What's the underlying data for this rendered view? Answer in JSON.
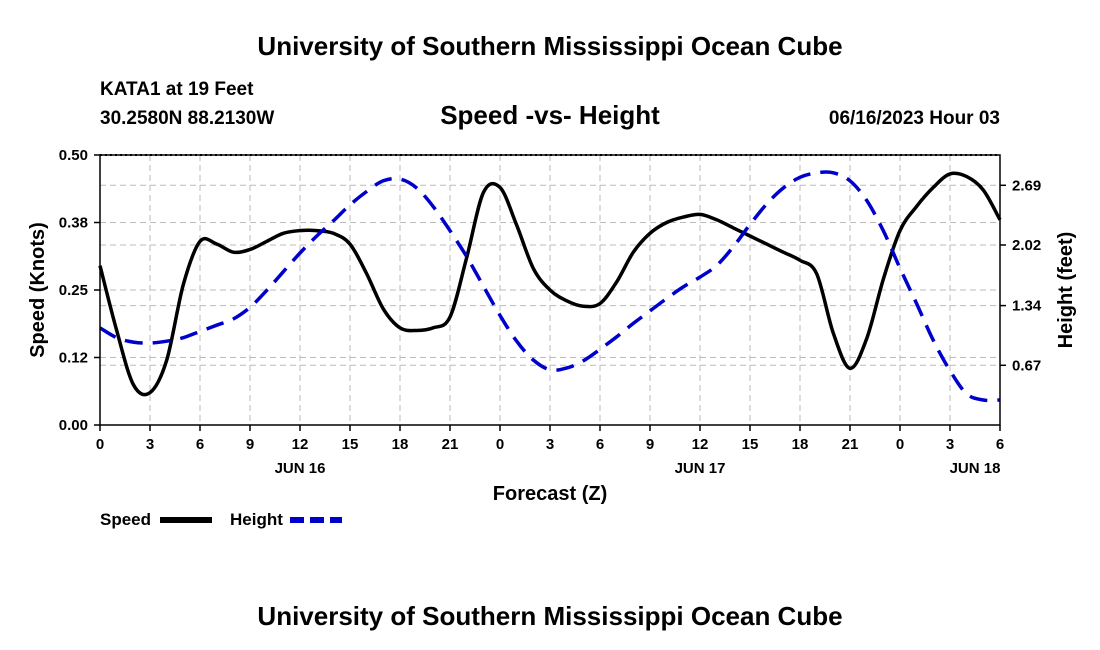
{
  "header": {
    "title": "University of Southern Mississippi Ocean Cube",
    "station": "KATA1 at 19 Feet",
    "location": "30.2580N  88.2130W",
    "date": "06/16/2023 Hour 03",
    "footer_title": "University of Southern Mississippi Ocean Cube"
  },
  "colors": {
    "speed": "#000000",
    "height": "#0000cc",
    "grid": "#bbbbbb"
  },
  "chart_data": {
    "type": "line",
    "title": "Speed -vs- Height",
    "xlabel": "Forecast (Z)",
    "ylabel": "Speed (Knots)",
    "ylabel_right": "Height (feet)",
    "x_range": [
      0,
      54
    ],
    "x_ticks": [
      {
        "x": 0,
        "label": "0"
      },
      {
        "x": 3,
        "label": "3"
      },
      {
        "x": 6,
        "label": "6"
      },
      {
        "x": 9,
        "label": "9"
      },
      {
        "x": 12,
        "label": "12"
      },
      {
        "x": 15,
        "label": "15"
      },
      {
        "x": 18,
        "label": "18"
      },
      {
        "x": 21,
        "label": "21"
      },
      {
        "x": 24,
        "label": "0"
      },
      {
        "x": 27,
        "label": "3"
      },
      {
        "x": 30,
        "label": "6"
      },
      {
        "x": 33,
        "label": "9"
      },
      {
        "x": 36,
        "label": "12"
      },
      {
        "x": 39,
        "label": "15"
      },
      {
        "x": 42,
        "label": "18"
      },
      {
        "x": 45,
        "label": "21"
      },
      {
        "x": 48,
        "label": "0"
      },
      {
        "x": 51,
        "label": "3"
      },
      {
        "x": 54,
        "label": "6"
      }
    ],
    "day_labels": [
      {
        "x": 12,
        "label": "JUN 16"
      },
      {
        "x": 36,
        "label": "JUN 17"
      },
      {
        "x": 52.5,
        "label": "JUN 18"
      }
    ],
    "y_left": {
      "range": [
        0,
        0.5
      ],
      "ticks": [
        {
          "v": 0.0,
          "label": "0.00"
        },
        {
          "v": 0.125,
          "label": "0.12"
        },
        {
          "v": 0.25,
          "label": "0.25"
        },
        {
          "v": 0.375,
          "label": "0.38"
        },
        {
          "v": 0.5,
          "label": "0.50"
        }
      ]
    },
    "y_right": {
      "range": [
        0,
        3.03
      ],
      "ticks": [
        {
          "v": 0.67,
          "label": "0.67"
        },
        {
          "v": 1.34,
          "label": "1.34"
        },
        {
          "v": 2.02,
          "label": "2.02"
        },
        {
          "v": 2.69,
          "label": "2.69"
        }
      ]
    },
    "series": [
      {
        "name": "Speed",
        "axis": "left",
        "style": "solid",
        "x": [
          0,
          1,
          2,
          3,
          4,
          5,
          6,
          7,
          8,
          9,
          10,
          11,
          12,
          13,
          14,
          15,
          16,
          17,
          18,
          19,
          20,
          21,
          22,
          23,
          24,
          25,
          26,
          27,
          28,
          29,
          30,
          31,
          32,
          33,
          34,
          35,
          36,
          37,
          38,
          39,
          40,
          41,
          42,
          43,
          44,
          45,
          46,
          47,
          48,
          49,
          50,
          51,
          52,
          53,
          54
        ],
        "values": [
          0.295,
          0.175,
          0.075,
          0.06,
          0.12,
          0.26,
          0.34,
          0.335,
          0.32,
          0.325,
          0.34,
          0.355,
          0.36,
          0.36,
          0.355,
          0.335,
          0.28,
          0.215,
          0.18,
          0.175,
          0.18,
          0.2,
          0.31,
          0.43,
          0.44,
          0.37,
          0.29,
          0.25,
          0.23,
          0.22,
          0.225,
          0.265,
          0.32,
          0.355,
          0.375,
          0.385,
          0.39,
          0.38,
          0.365,
          0.35,
          0.335,
          0.32,
          0.305,
          0.28,
          0.17,
          0.105,
          0.16,
          0.27,
          0.36,
          0.405,
          0.44,
          0.465,
          0.46,
          0.435,
          0.38
        ]
      },
      {
        "name": "Height",
        "axis": "right",
        "style": "dashed",
        "x": [
          0,
          1,
          2,
          3,
          4,
          5,
          6,
          7,
          8,
          9,
          10,
          11,
          12,
          13,
          14,
          15,
          16,
          17,
          18,
          19,
          20,
          21,
          22,
          23,
          24,
          25,
          26,
          27,
          28,
          29,
          30,
          31,
          32,
          33,
          34,
          35,
          36,
          37,
          38,
          39,
          40,
          41,
          42,
          43,
          44,
          45,
          46,
          47,
          48,
          49,
          50,
          51,
          52,
          53,
          54
        ],
        "values": [
          1.09,
          0.98,
          0.93,
          0.92,
          0.94,
          0.98,
          1.05,
          1.12,
          1.19,
          1.32,
          1.51,
          1.72,
          1.93,
          2.12,
          2.29,
          2.47,
          2.62,
          2.74,
          2.76,
          2.66,
          2.45,
          2.18,
          1.89,
          1.56,
          1.23,
          0.94,
          0.73,
          0.62,
          0.64,
          0.72,
          0.85,
          0.99,
          1.14,
          1.28,
          1.42,
          1.55,
          1.66,
          1.79,
          2.0,
          2.25,
          2.48,
          2.66,
          2.78,
          2.83,
          2.83,
          2.74,
          2.52,
          2.18,
          1.76,
          1.36,
          0.95,
          0.61,
          0.35,
          0.28,
          0.28
        ]
      }
    ],
    "legend": [
      {
        "label": "Speed",
        "series": "Speed"
      },
      {
        "label": "Height",
        "series": "Height"
      }
    ],
    "grid": true,
    "legend_position": "bottom-left"
  }
}
